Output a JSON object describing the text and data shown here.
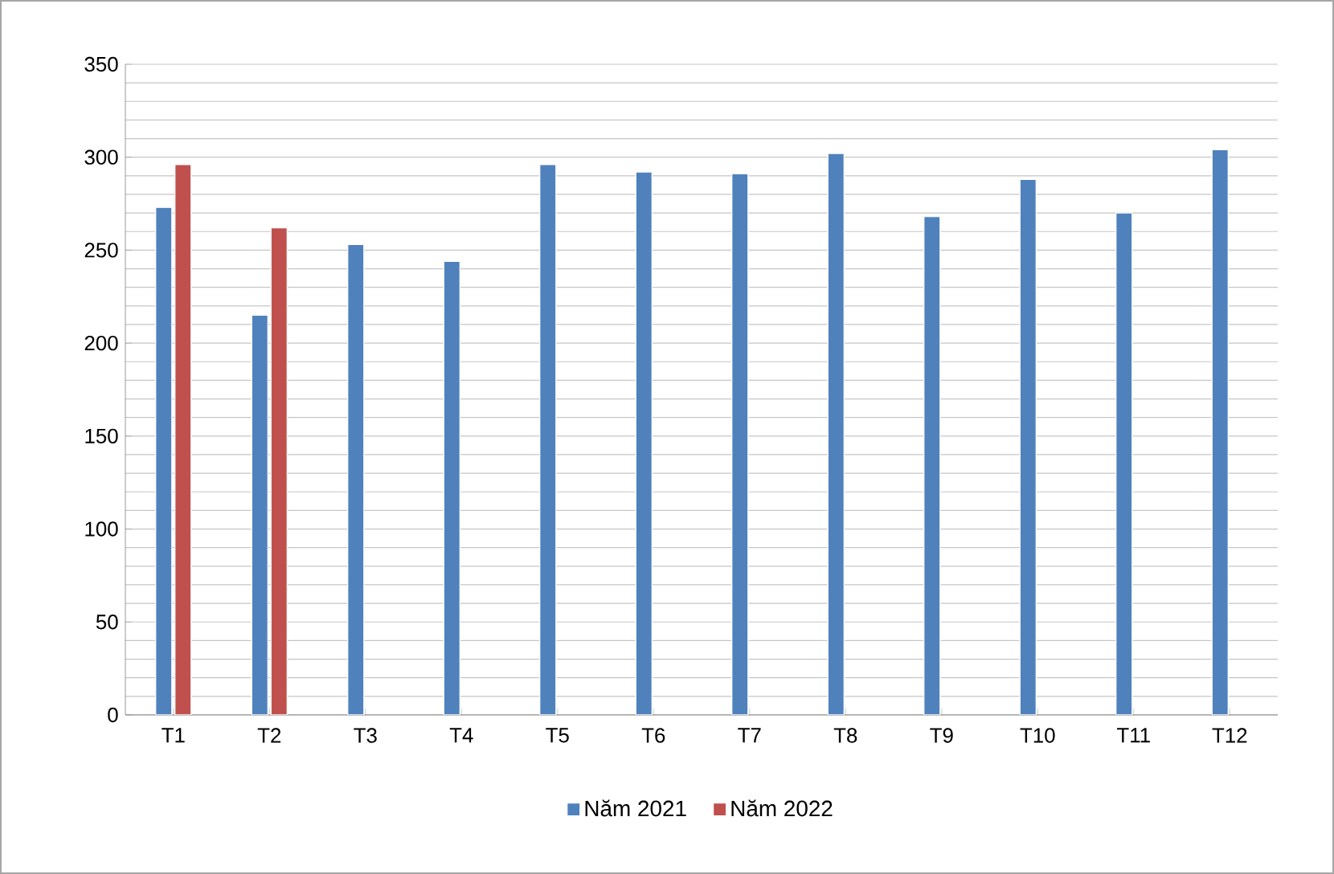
{
  "chart_data": {
    "type": "bar",
    "categories": [
      "T1",
      "T2",
      "T3",
      "T4",
      "T5",
      "T6",
      "T7",
      "T8",
      "T9",
      "T10",
      "T11",
      "T12"
    ],
    "series": [
      {
        "name": "Năm 2021",
        "color": "#4f81bd",
        "values": [
          273,
          215,
          253,
          244,
          296,
          292,
          291,
          302,
          268,
          288,
          270,
          304
        ]
      },
      {
        "name": "Năm 2022",
        "color": "#c0504d",
        "values": [
          296,
          262,
          null,
          null,
          null,
          null,
          null,
          null,
          null,
          null,
          null,
          null
        ]
      }
    ],
    "ylim": [
      0,
      350
    ],
    "yticks": [
      0,
      50,
      100,
      150,
      200,
      250,
      300,
      350
    ],
    "grid": "y",
    "legend": "bottom"
  }
}
